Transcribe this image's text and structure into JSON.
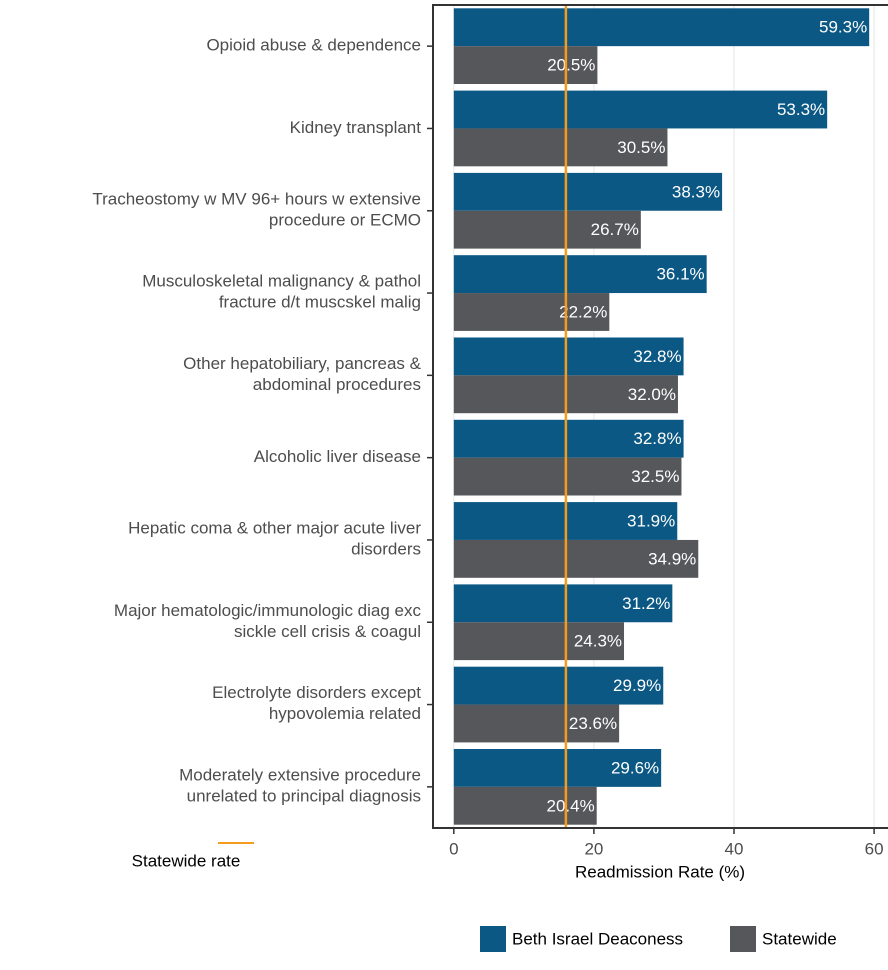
{
  "chart_data": {
    "type": "bar",
    "orientation": "horizontal",
    "xlabel": "Readmission Rate (%)",
    "categories": [
      "Opioid abuse & dependence",
      "Kidney transplant",
      "Tracheostomy w MV 96+ hours w extensive\nprocedure or ECMO",
      "Musculoskeletal malignancy & pathol\nfracture d/t muscskel malig",
      "Other hepatobiliary, pancreas &\nabdominal procedures",
      "Alcoholic liver disease",
      "Hepatic coma & other major acute liver\ndisorders",
      "Major hematologic/immunologic diag exc\nsickle cell crisis & coagul",
      "Electrolyte disorders except\nhypovolemia related",
      "Moderately extensive procedure\nunrelated to principal diagnosis"
    ],
    "series": [
      {
        "name": "Beth Israel Deaconess",
        "color": "#0b5884",
        "values": [
          59.3,
          53.3,
          38.3,
          36.1,
          32.8,
          32.8,
          31.9,
          31.2,
          29.9,
          29.6
        ],
        "value_labels": [
          "59.3%",
          "53.3%",
          "38.3%",
          "36.1%",
          "32.8%",
          "32.8%",
          "31.9%",
          "31.2%",
          "29.9%",
          "29.6%"
        ]
      },
      {
        "name": "Statewide",
        "color": "#56575b",
        "values": [
          20.5,
          30.5,
          26.7,
          22.2,
          32.0,
          32.5,
          34.9,
          24.3,
          23.6,
          20.4
        ],
        "value_labels": [
          "20.5%",
          "30.5%",
          "26.7%",
          "22.2%",
          "32.0%",
          "32.5%",
          "34.9%",
          "24.3%",
          "23.6%",
          "20.4%"
        ]
      }
    ],
    "reference_line": {
      "name": "Statewide rate",
      "value": 16,
      "color": "#f39c1f"
    },
    "xlim": [
      -2.97,
      62.27
    ],
    "xticks": [
      0,
      20,
      40,
      60
    ],
    "grid": true,
    "legend": "bottom"
  }
}
